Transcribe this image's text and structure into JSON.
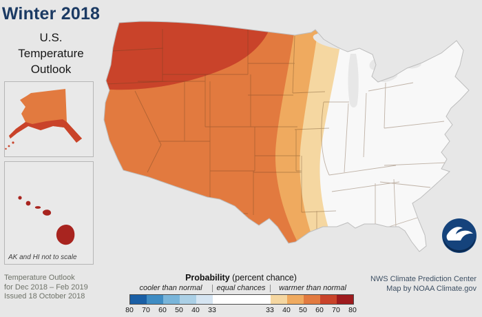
{
  "header": {
    "title": "Winter 2018",
    "subtitle_lines": [
      "U.S.",
      "Temperature",
      "Outlook"
    ]
  },
  "insets": {
    "note": "AK and HI not to scale"
  },
  "footer_left": {
    "line1": "Temperature Outlook",
    "line2": "for Dec 2018 – Feb 2019",
    "line3": "Issued 18 October 2018"
  },
  "legend": {
    "title_bold": "Probability",
    "title_rest": " (percent chance)",
    "label_cooler": "cooler than normal",
    "label_equal": "equal chances",
    "label_warmer": "warmer than normal",
    "cooler_ticks": [
      "80",
      "70",
      "60",
      "50",
      "40",
      "33"
    ],
    "warmer_ticks": [
      "33",
      "40",
      "50",
      "60",
      "70",
      "80"
    ],
    "cooler_colors": [
      "#1a5fa5",
      "#3f8cc3",
      "#79b5da",
      "#abd0e6",
      "#d6e5f2"
    ],
    "warmer_colors": [
      "#f5d7a1",
      "#efaa5f",
      "#e27a3f",
      "#c9432a",
      "#9e1b1e"
    ],
    "equal_color": "#ffffff"
  },
  "credits": {
    "line1": "NWS Climate Prediction Center",
    "line2": "Map by NOAA Climate.gov"
  },
  "map": {
    "colors": {
      "ocean": "#e7e7e7",
      "equal": "#f8f8f8",
      "band_33_40": "#f5d7a1",
      "band_40_50": "#efaa5f",
      "band_50_60": "#e27a3f",
      "band_60_70": "#c9432a",
      "alaska_main": "#e27a3f",
      "alaska_coast": "#c9432a",
      "hawaii": "#a8241f"
    },
    "bands": [
      {
        "range": "60-70% chance warmer than normal",
        "color": "#c9432a",
        "area": "Pacific Northwest / Northern Rockies"
      },
      {
        "range": "50-60% chance warmer than normal",
        "color": "#e27a3f",
        "area": "West and Southwest"
      },
      {
        "range": "40-50% chance warmer than normal",
        "color": "#efaa5f",
        "area": "Central Plains"
      },
      {
        "range": "33-40% chance warmer than normal",
        "color": "#f5d7a1",
        "area": "Upper Midwest to central Texas"
      },
      {
        "range": "Equal chances",
        "color": "#f8f8f8",
        "area": "Southeast / East"
      }
    ]
  }
}
